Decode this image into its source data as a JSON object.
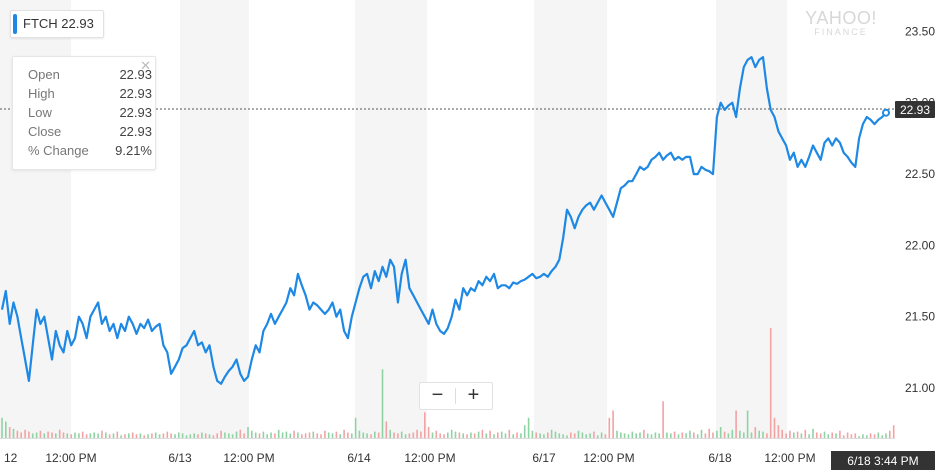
{
  "ticker": {
    "symbol": "FTCH",
    "price": "22.93"
  },
  "tooltip": {
    "close_icon": "close-icon",
    "rows": [
      {
        "label": "Open",
        "value": "22.93"
      },
      {
        "label": "High",
        "value": "22.93"
      },
      {
        "label": "Low",
        "value": "22.93"
      },
      {
        "label": "Close",
        "value": "22.93"
      },
      {
        "label": "% Change",
        "value": "9.21%"
      }
    ]
  },
  "zoom": {
    "minus_label": "−",
    "plus_label": "+"
  },
  "watermark": {
    "line1": "YAHOO!",
    "line2": "FINANCE"
  },
  "colors": {
    "line": "#1e88e5",
    "volume_up": "#8fd3a4",
    "volume_down": "#f2a3a3",
    "shade": "#f5f5f5",
    "label_bg": "#333333"
  },
  "chart_data": {
    "type": "line",
    "series": [
      {
        "values": [
          21.55,
          21.68,
          21.45,
          21.6,
          21.5,
          21.35,
          21.2,
          21.05,
          21.3,
          21.55,
          21.45,
          21.5,
          21.35,
          21.2,
          21.4,
          21.3,
          21.25,
          21.4,
          21.3,
          21.35,
          21.5,
          21.45,
          21.35,
          21.5,
          21.55,
          21.6,
          21.45,
          21.5,
          21.4,
          21.45,
          21.35,
          21.45,
          21.4,
          21.5,
          21.45,
          21.38,
          21.45,
          21.42,
          21.48,
          21.4,
          21.43,
          21.45,
          21.3,
          21.25,
          21.1,
          21.15,
          21.2,
          21.28,
          21.3,
          21.35,
          21.4,
          21.3,
          21.32,
          21.25,
          21.3,
          21.15,
          21.05,
          21.03,
          21.08,
          21.12,
          21.15,
          21.2,
          21.1,
          21.05,
          21.08,
          21.2,
          21.3,
          21.25,
          21.4,
          21.45,
          21.52,
          21.45,
          21.5,
          21.55,
          21.6,
          21.7,
          21.65,
          21.8,
          21.72,
          21.65,
          21.55,
          21.6,
          21.58,
          21.55,
          21.52,
          21.55,
          21.6,
          21.5,
          21.55,
          21.4,
          21.35,
          21.5,
          21.6,
          21.7,
          21.78,
          21.8,
          21.7,
          21.82,
          21.75,
          21.85,
          21.78,
          21.9,
          21.85,
          21.6,
          21.8,
          21.9,
          21.7,
          21.65,
          21.6,
          21.55,
          21.5,
          21.45,
          21.55,
          21.45,
          21.4,
          21.38,
          21.42,
          21.5,
          21.62,
          21.55,
          21.7,
          21.65,
          21.7,
          21.68,
          21.75,
          21.72,
          21.78,
          21.75,
          21.8,
          21.7,
          21.72,
          21.72,
          21.7,
          21.74,
          21.73,
          21.75,
          21.76,
          21.78,
          21.8,
          21.77,
          21.78,
          21.8,
          21.78,
          21.82,
          21.85,
          21.9,
          22.05,
          22.25,
          22.2,
          22.12,
          22.2,
          22.25,
          22.28,
          22.3,
          22.25,
          22.3,
          22.35,
          22.3,
          22.25,
          22.2,
          22.3,
          22.4,
          22.42,
          22.45,
          22.45,
          22.5,
          22.55,
          22.53,
          22.55,
          22.6,
          22.62,
          22.65,
          22.6,
          22.63,
          22.65,
          22.6,
          22.62,
          22.6,
          22.62,
          22.62,
          22.5,
          22.5,
          22.55,
          22.53,
          22.52,
          22.5,
          22.9,
          23.0,
          22.95,
          22.98,
          23.0,
          22.9,
          23.1,
          23.25,
          23.3,
          23.32,
          23.25,
          23.3,
          23.32,
          23.1,
          22.95,
          22.9,
          22.8,
          22.75,
          22.7,
          22.6,
          22.65,
          22.55,
          22.6,
          22.55,
          22.62,
          22.7,
          22.65,
          22.6,
          22.72,
          22.75,
          22.7,
          22.75,
          22.72,
          22.65,
          22.62,
          22.58,
          22.55,
          22.75,
          22.85,
          22.9,
          22.88,
          22.85,
          22.88,
          22.9,
          22.93
        ]
      },
      {
        "name": "volume",
        "values": [
          22,
          18,
          12,
          10,
          8,
          6,
          9,
          7,
          5,
          6,
          8,
          5,
          7,
          6,
          5,
          9,
          6,
          5,
          4,
          6,
          5,
          7,
          4,
          5,
          6,
          5,
          8,
          6,
          4,
          5,
          7,
          3,
          4,
          5,
          6,
          4,
          5,
          3,
          4,
          5,
          6,
          4,
          5,
          7,
          5,
          4,
          6,
          5,
          3,
          4,
          5,
          4,
          6,
          5,
          4,
          3,
          5,
          8,
          6,
          5,
          4,
          7,
          9,
          5,
          12,
          8,
          6,
          5,
          7,
          4,
          6,
          5,
          9,
          6,
          7,
          5,
          8,
          6,
          4,
          5,
          6,
          7,
          5,
          4,
          8,
          6,
          5,
          7,
          4,
          9,
          6,
          5,
          22,
          8,
          6,
          5,
          4,
          7,
          6,
          75,
          18,
          9,
          6,
          5,
          7,
          4,
          5,
          6,
          9,
          7,
          28,
          12,
          6,
          8,
          5,
          4,
          6,
          9,
          7,
          6,
          5,
          4,
          6,
          5,
          7,
          9,
          5,
          8,
          4,
          6,
          7,
          5,
          9,
          4,
          6,
          5,
          14,
          22,
          8,
          6,
          5,
          4,
          6,
          9,
          7,
          5,
          4,
          3,
          6,
          5,
          8,
          6,
          4,
          5,
          7,
          3,
          6,
          4,
          22,
          30,
          8,
          6,
          5,
          4,
          7,
          5,
          6,
          9,
          5,
          4,
          6,
          5,
          40,
          6,
          5,
          7,
          4,
          6,
          5,
          8,
          6,
          4,
          9,
          5,
          10,
          6,
          8,
          12,
          7,
          5,
          9,
          30,
          8,
          6,
          30,
          6,
          12,
          8,
          7,
          5,
          120,
          22,
          14,
          9,
          5,
          8,
          6,
          7,
          5,
          9,
          4,
          10,
          6,
          5,
          7,
          4,
          6,
          5,
          8,
          3,
          6,
          4,
          5,
          2,
          4,
          3,
          5,
          4,
          6,
          3,
          5,
          8,
          14
        ]
      }
    ],
    "x_tick_labels": [
      "12",
      "12:00 PM",
      "6/13",
      "12:00 PM",
      "6/14",
      "12:00 PM",
      "6/17",
      "12:00 PM",
      "6/18",
      "12:00 PM"
    ],
    "y_tick_labels": [
      "23.50",
      "23.00",
      "22.50",
      "22.00",
      "21.50",
      "21.00"
    ],
    "ylim": [
      20.65,
      23.72
    ],
    "current_price_label": "22.93",
    "crosshair_time": "6/18 3:44 PM",
    "grid": false
  }
}
